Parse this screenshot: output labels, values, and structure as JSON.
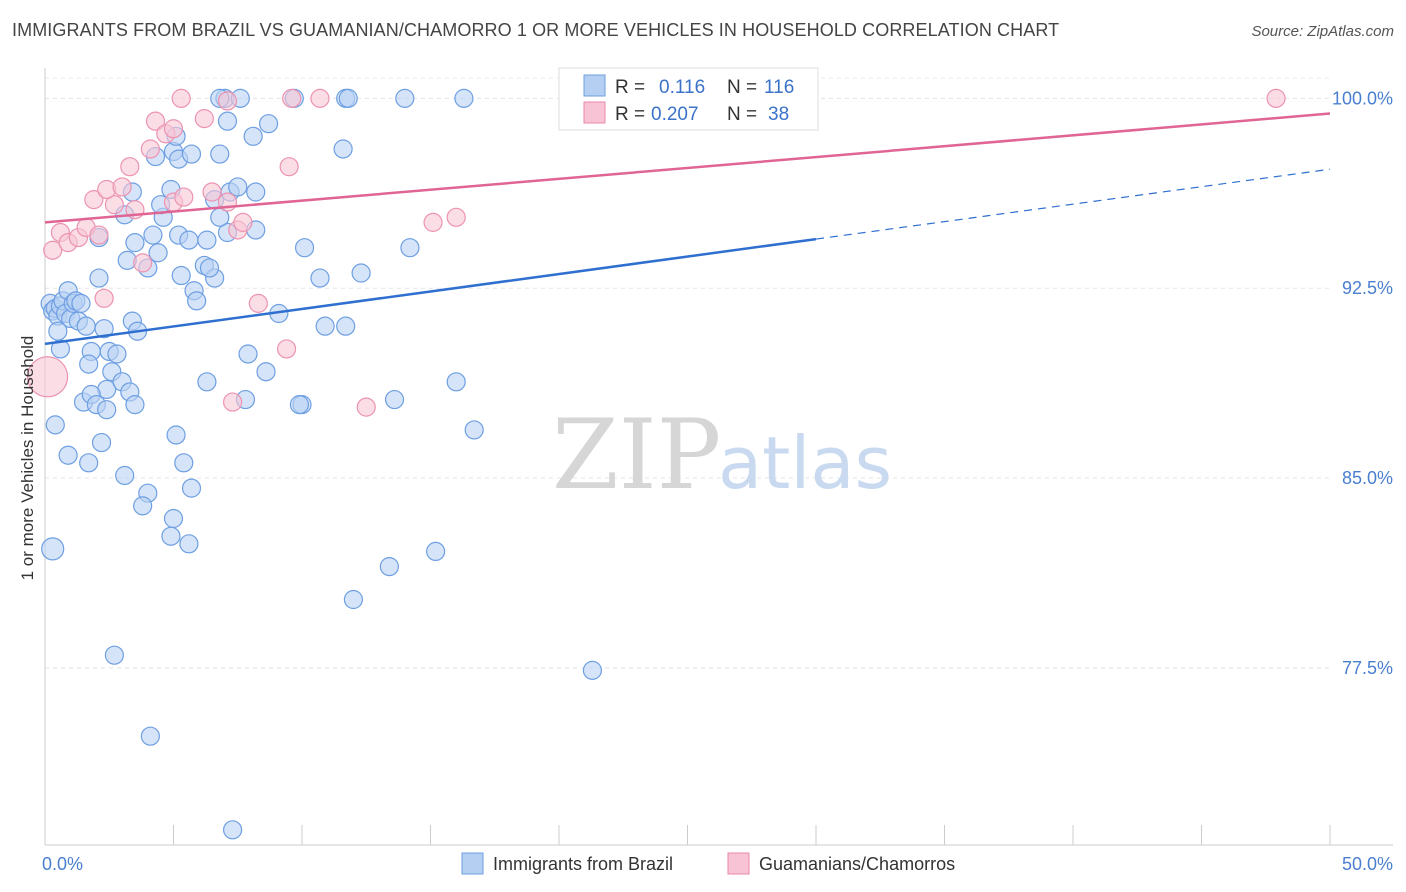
{
  "title": "IMMIGRANTS FROM BRAZIL VS GUAMANIAN/CHAMORRO 1 OR MORE VEHICLES IN HOUSEHOLD CORRELATION CHART",
  "source": "Source: ZipAtlas.com",
  "watermark": {
    "zip": "ZIP",
    "atlas": "atlas"
  },
  "legend": {
    "rows": [
      {
        "r_label": "R =",
        "r_value": "0.116",
        "n_label": "N =",
        "n_value": "116"
      },
      {
        "r_label": "R =",
        "r_value": "0.207",
        "n_label": "N =",
        "n_value": "38"
      }
    ]
  },
  "chart_data": {
    "type": "scatter",
    "title": "IMMIGRANTS FROM BRAZIL VS GUAMANIAN/CHAMORRO 1 OR MORE VEHICLES IN HOUSEHOLD CORRELATION CHART",
    "xlabel": "",
    "ylabel": "1 or more Vehicles in Household",
    "xlim": [
      0,
      50
    ],
    "ylim": [
      70.5,
      101.2
    ],
    "x_ticks": [
      "0.0%",
      "50.0%"
    ],
    "y_ticks": [
      {
        "value": 100.0,
        "label": "100.0%"
      },
      {
        "value": 92.5,
        "label": "92.5%"
      },
      {
        "value": 85.0,
        "label": "85.0%"
      },
      {
        "value": 77.5,
        "label": "77.5%"
      }
    ],
    "grid": true,
    "legend_position": "top-center",
    "colors": {
      "brazil": "#4a86d8",
      "guam": "#e87aa0"
    },
    "series": [
      {
        "name": "Immigrants from Brazil",
        "color": "#4a86d8",
        "trend": {
          "x": [
            0,
            30,
            50
          ],
          "y": [
            90.3,
            94.5,
            97.2
          ],
          "solid_until": 30
        },
        "points": [
          [
            0.2,
            91.9
          ],
          [
            0.3,
            91.6
          ],
          [
            0.4,
            91.7
          ],
          [
            0.5,
            91.4
          ],
          [
            0.6,
            91.8
          ],
          [
            0.7,
            92.0
          ],
          [
            0.8,
            91.5
          ],
          [
            0.9,
            92.4
          ],
          [
            1.0,
            91.3
          ],
          [
            1.1,
            91.9
          ],
          [
            1.2,
            92.0
          ],
          [
            1.3,
            91.2
          ],
          [
            1.4,
            91.9
          ],
          [
            0.5,
            90.8
          ],
          [
            0.6,
            90.1
          ],
          [
            1.6,
            91.0
          ],
          [
            1.8,
            90.0
          ],
          [
            1.7,
            89.5
          ],
          [
            2.1,
            92.9
          ],
          [
            2.3,
            90.9
          ],
          [
            2.5,
            90.0
          ],
          [
            2.8,
            89.9
          ],
          [
            2.6,
            89.2
          ],
          [
            2.4,
            88.5
          ],
          [
            3.0,
            88.8
          ],
          [
            3.3,
            88.4
          ],
          [
            3.5,
            87.9
          ],
          [
            1.5,
            88.0
          ],
          [
            1.8,
            88.3
          ],
          [
            2.0,
            87.9
          ],
          [
            2.4,
            87.7
          ],
          [
            0.4,
            87.1
          ],
          [
            0.9,
            85.9
          ],
          [
            1.7,
            85.6
          ],
          [
            2.2,
            86.4
          ],
          [
            3.1,
            85.1
          ],
          [
            4.0,
            84.4
          ],
          [
            3.8,
            83.9
          ],
          [
            5.1,
            86.7
          ],
          [
            5.4,
            85.6
          ],
          [
            5.7,
            84.6
          ],
          [
            5.0,
            83.4
          ],
          [
            4.9,
            82.7
          ],
          [
            5.6,
            82.4
          ],
          [
            0.3,
            82.2
          ],
          [
            2.7,
            78.0
          ],
          [
            4.1,
            74.8
          ],
          [
            7.3,
            71.1
          ],
          [
            3.4,
            91.2
          ],
          [
            3.6,
            90.8
          ],
          [
            3.2,
            93.6
          ],
          [
            4.0,
            93.3
          ],
          [
            4.4,
            93.9
          ],
          [
            5.3,
            93.0
          ],
          [
            5.8,
            92.4
          ],
          [
            5.9,
            92.0
          ],
          [
            6.2,
            93.4
          ],
          [
            6.6,
            92.9
          ],
          [
            6.4,
            93.3
          ],
          [
            7.9,
            89.9
          ],
          [
            8.6,
            89.2
          ],
          [
            7.8,
            88.1
          ],
          [
            6.3,
            88.8
          ],
          [
            9.1,
            91.5
          ],
          [
            10.0,
            87.9
          ],
          [
            9.9,
            87.9
          ],
          [
            10.9,
            91.0
          ],
          [
            11.7,
            91.0
          ],
          [
            10.7,
            92.9
          ],
          [
            12.3,
            93.1
          ],
          [
            13.6,
            88.1
          ],
          [
            16.0,
            88.8
          ],
          [
            16.7,
            86.9
          ],
          [
            13.4,
            81.5
          ],
          [
            15.2,
            82.1
          ],
          [
            12.0,
            80.2
          ],
          [
            21.3,
            77.4
          ],
          [
            2.1,
            94.5
          ],
          [
            3.1,
            95.4
          ],
          [
            3.5,
            94.3
          ],
          [
            4.2,
            94.6
          ],
          [
            4.6,
            95.3
          ],
          [
            5.2,
            94.6
          ],
          [
            5.6,
            94.4
          ],
          [
            6.3,
            94.4
          ],
          [
            7.1,
            94.7
          ],
          [
            6.8,
            95.3
          ],
          [
            4.9,
            96.4
          ],
          [
            4.5,
            95.8
          ],
          [
            6.6,
            96.0
          ],
          [
            7.2,
            96.3
          ],
          [
            8.2,
            96.3
          ],
          [
            8.2,
            94.8
          ],
          [
            10.1,
            94.1
          ],
          [
            14.2,
            94.1
          ],
          [
            3.4,
            96.3
          ],
          [
            5.0,
            97.9
          ],
          [
            5.2,
            97.6
          ],
          [
            4.3,
            97.7
          ],
          [
            5.7,
            97.8
          ],
          [
            6.8,
            97.8
          ],
          [
            7.5,
            96.5
          ],
          [
            7.1,
            99.1
          ],
          [
            8.1,
            98.5
          ],
          [
            8.7,
            99.0
          ],
          [
            5.1,
            98.5
          ],
          [
            7.0,
            100.0
          ],
          [
            7.6,
            100.0
          ],
          [
            6.8,
            100.0
          ],
          [
            9.7,
            100.0
          ],
          [
            11.7,
            100.0
          ],
          [
            11.8,
            100.0
          ],
          [
            14.0,
            100.0
          ],
          [
            16.3,
            100.0
          ],
          [
            27.6,
            100.0
          ],
          [
            11.6,
            98.0
          ]
        ]
      },
      {
        "name": "Guamanians/Chamorros",
        "color": "#e87aa0",
        "trend": {
          "x": [
            0,
            50
          ],
          "y": [
            95.1,
            99.4
          ],
          "solid_until": 50
        },
        "points": [
          [
            0.1,
            89.0
          ],
          [
            0.3,
            94.0
          ],
          [
            0.6,
            94.7
          ],
          [
            0.9,
            94.3
          ],
          [
            1.3,
            94.5
          ],
          [
            1.6,
            94.9
          ],
          [
            2.1,
            94.6
          ],
          [
            1.9,
            96.0
          ],
          [
            2.7,
            95.8
          ],
          [
            2.4,
            96.4
          ],
          [
            3.0,
            96.5
          ],
          [
            3.5,
            95.6
          ],
          [
            3.3,
            97.3
          ],
          [
            4.1,
            98.0
          ],
          [
            4.3,
            99.1
          ],
          [
            4.7,
            98.6
          ],
          [
            5.0,
            95.9
          ],
          [
            5.4,
            96.1
          ],
          [
            5.0,
            98.8
          ],
          [
            6.2,
            99.2
          ],
          [
            6.5,
            96.3
          ],
          [
            7.1,
            99.9
          ],
          [
            7.5,
            94.8
          ],
          [
            7.7,
            95.1
          ],
          [
            7.1,
            95.9
          ],
          [
            5.3,
            100.0
          ],
          [
            9.6,
            100.0
          ],
          [
            10.7,
            100.0
          ],
          [
            9.5,
            97.3
          ],
          [
            8.3,
            91.9
          ],
          [
            9.4,
            90.1
          ],
          [
            7.3,
            88.0
          ],
          [
            12.5,
            87.8
          ],
          [
            15.1,
            95.1
          ],
          [
            16.0,
            95.3
          ],
          [
            2.3,
            92.1
          ],
          [
            3.8,
            93.5
          ],
          [
            47.9,
            100.0
          ]
        ]
      }
    ]
  }
}
